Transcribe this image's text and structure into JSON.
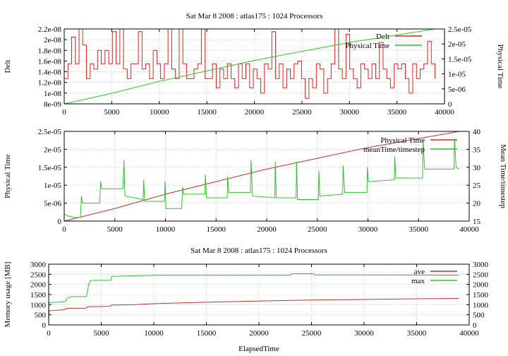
{
  "chart_data": [
    {
      "type": "line",
      "title": "Sat Mar 8 2008 : atlas175 : 1024 Processors",
      "xlabel": "",
      "ylabel": "Delt",
      "y2label": "Physical Time",
      "ylabel_color": "#e02020",
      "y2label_color": "#30c030",
      "xlim": [
        0,
        40000
      ],
      "ylim": [
        8e-09,
        2.2e-08
      ],
      "y2lim": [
        0,
        2.5e-05
      ],
      "xticks": [
        0,
        5000,
        10000,
        15000,
        20000,
        25000,
        30000,
        35000,
        40000
      ],
      "xticklabels": [
        "0",
        "5000",
        "10000",
        "15000",
        "20000",
        "25000",
        "30000",
        "35000",
        "40000"
      ],
      "yticks": [
        8e-09,
        1e-08,
        1.2e-08,
        1.4e-08,
        1.6e-08,
        1.8e-08,
        2e-08,
        2.2e-08
      ],
      "yticklabels": [
        "8e-09",
        "1e-08",
        "1.2e-08",
        "1.4e-08",
        "1.6e-08",
        "1.8e-08",
        "2e-08",
        "2.2e-08"
      ],
      "y2ticks": [
        0,
        5e-06,
        1e-05,
        1.5e-05,
        2e-05,
        2.5e-05
      ],
      "y2ticklabels": [
        "0",
        "5e-06",
        "1e-05",
        "1.5e-05",
        "2e-05",
        "2.5e-05"
      ],
      "grid": true,
      "legend_position": "top-right",
      "series": [
        {
          "name": "Delt",
          "axis": "y1",
          "color": "#e02020",
          "x_start": 0,
          "x_step": 390,
          "value_scale": 1e-08,
          "values": [
            1.27,
            1.55,
            2.05,
            1.55,
            2.2,
            1.9,
            1.27,
            1.55,
            1.45,
            1.8,
            1.55,
            1.8,
            1.55,
            2.15,
            1.55,
            2.2,
            1.45,
            1.27,
            1.55,
            1.55,
            2.15,
            1.45,
            1.55,
            1.27,
            1.8,
            1.55,
            1.27,
            1.55,
            2.2,
            1.45,
            1.27,
            2.2,
            1.55,
            1.27,
            1.27,
            1.45,
            1.55,
            2.2,
            1.27,
            1.27,
            1.55,
            1.1,
            1.45,
            1.27,
            1.55,
            1.27,
            1.1,
            1.55,
            1.27,
            1.55,
            1.1,
            1.45,
            1.27,
            1.0,
            1.55,
            1.45,
            2.15,
            1.27,
            1.55,
            1.1,
            1.45,
            1.27,
            1.55,
            1.6,
            1.27,
            0.9,
            1.27,
            1.1,
            1.55,
            1.45,
            1.0,
            1.27,
            1.55,
            2.2,
            1.45,
            1.27,
            2.1,
            1.45,
            1.27,
            1.1,
            1.55,
            1.45,
            1.27,
            1.55,
            1.27,
            1.95,
            1.45,
            1.27,
            1.1,
            1.55,
            1.45,
            1.55,
            1.27,
            1.0,
            1.55,
            1.27,
            1.45,
            1.55,
            1.97,
            1.55,
            1.27
          ]
        },
        {
          "name": "Physical Time",
          "axis": "y2",
          "color": "#30c030",
          "x": [
            0,
            5000,
            10000,
            15000,
            20000,
            25000,
            30000,
            35000,
            39000
          ],
          "y": [
            0,
            3.5e-06,
            7.5e-06,
            1.1e-05,
            1.45e-05,
            1.75e-05,
            2.05e-05,
            2.3e-05,
            2.5e-05
          ]
        }
      ]
    },
    {
      "type": "line",
      "title": "",
      "xlabel": "",
      "ylabel": "Physical Time",
      "y2label": "Mean Time/timestep",
      "ylabel_color": "#c02020",
      "y2label_color": "#30c030",
      "xlim": [
        0,
        40000
      ],
      "ylim": [
        0,
        2.5e-05
      ],
      "y2lim": [
        15,
        40
      ],
      "xticks": [
        0,
        5000,
        10000,
        15000,
        20000,
        25000,
        30000,
        35000,
        40000
      ],
      "xticklabels": [
        "0",
        "5000",
        "10000",
        "15000",
        "20000",
        "25000",
        "30000",
        "35000",
        "40000"
      ],
      "yticks": [
        0,
        5e-06,
        1e-05,
        1.5e-05,
        2e-05,
        2.5e-05
      ],
      "yticklabels": [
        "0",
        "5e-06",
        "1e-05",
        "1.5e-05",
        "2e-05",
        "2.5e-05"
      ],
      "y2ticks": [
        15,
        20,
        25,
        30,
        35,
        40
      ],
      "y2ticklabels": [
        "15",
        "20",
        "25",
        "30",
        "35",
        "40"
      ],
      "grid": true,
      "legend_position": "top-right",
      "series": [
        {
          "name": "Physical Time",
          "axis": "y1",
          "color": "#c03030",
          "x": [
            0,
            5000,
            10000,
            15000,
            20000,
            25000,
            30000,
            35000,
            39000
          ],
          "y": [
            0,
            3.5e-06,
            7.5e-06,
            1.1e-05,
            1.45e-05,
            1.75e-05,
            2.05e-05,
            2.3e-05,
            2.5e-05
          ]
        },
        {
          "name": "meanTime/timestep",
          "axis": "y2",
          "color": "#30c030",
          "x": [
            0,
            300,
            1000,
            1600,
            1700,
            1800,
            3500,
            3600,
            3700,
            5800,
            5900,
            6000,
            7800,
            7850,
            7950,
            9900,
            9950,
            10050,
            11600,
            11700,
            11800,
            13900,
            13950,
            14050,
            16100,
            16150,
            16250,
            18400,
            18450,
            18600,
            20800,
            20850,
            20950,
            22900,
            22950,
            23050,
            25100,
            25150,
            25250,
            27500,
            27550,
            27700,
            29900,
            29950,
            30050,
            32600,
            32650,
            32750,
            35400,
            35450,
            35600,
            38500,
            38550,
            38700,
            39000
          ],
          "y": [
            17,
            16.5,
            16,
            16,
            22,
            20,
            20,
            26,
            24,
            24,
            32,
            22,
            21,
            26.5,
            20.5,
            20.5,
            26,
            18.5,
            18.5,
            24.5,
            22.5,
            22.5,
            28,
            21.5,
            21.5,
            27.5,
            23,
            23,
            32,
            22,
            21.5,
            31.5,
            21.5,
            21.5,
            31.5,
            21,
            21,
            29,
            22,
            22.5,
            30.5,
            23,
            23,
            30,
            26,
            26.5,
            33,
            27,
            27,
            37.5,
            29.5,
            29.5,
            38,
            30,
            29.5
          ]
        }
      ]
    },
    {
      "type": "line",
      "title": "Sat Mar 8 2008 : atlas175 : 1024 Processors",
      "xlabel": "ElapsedTime",
      "ylabel": "Memory usage [MB]",
      "y2label": "",
      "ylabel_color": "#c02020",
      "y2label_color": "#000000",
      "xlim": [
        0,
        40000
      ],
      "ylim": [
        0,
        3000
      ],
      "y2lim": [
        0,
        3000
      ],
      "xticks": [
        0,
        5000,
        10000,
        15000,
        20000,
        25000,
        30000,
        35000,
        40000
      ],
      "xticklabels": [
        "0",
        "5000",
        "10000",
        "15000",
        "20000",
        "25000",
        "30000",
        "35000",
        "40000"
      ],
      "yticks": [
        0,
        500,
        1000,
        1500,
        2000,
        2500,
        3000
      ],
      "yticklabels": [
        "0",
        "500",
        "1000",
        "1500",
        "2000",
        "2500",
        "3000"
      ],
      "y2ticks": [
        0,
        500,
        1000,
        1500,
        2000,
        2500,
        3000
      ],
      "y2ticklabels": [
        "0",
        "500",
        "1000",
        "1500",
        "2000",
        "2500",
        "3000"
      ],
      "grid": true,
      "legend_position": "top-right",
      "series": [
        {
          "name": "ave",
          "axis": "y1",
          "color": "#c03030",
          "x": [
            0,
            50,
            1500,
            1700,
            3500,
            3700,
            5800,
            6000,
            8000,
            10000,
            15000,
            20000,
            25000,
            30000,
            35000,
            39000
          ],
          "y": [
            300,
            700,
            750,
            820,
            830,
            900,
            920,
            980,
            1000,
            1050,
            1120,
            1180,
            1230,
            1260,
            1290,
            1310
          ]
        },
        {
          "name": "max",
          "axis": "y1",
          "color": "#30c030",
          "x": [
            0,
            30,
            1600,
            1700,
            2100,
            3600,
            3800,
            4000,
            5900,
            6000,
            10000,
            23000,
            23100,
            25200,
            25300,
            39000
          ],
          "y": [
            300,
            1100,
            1150,
            1280,
            1400,
            1400,
            2000,
            2200,
            2200,
            2400,
            2450,
            2450,
            2530,
            2530,
            2470,
            2460
          ]
        }
      ]
    }
  ]
}
